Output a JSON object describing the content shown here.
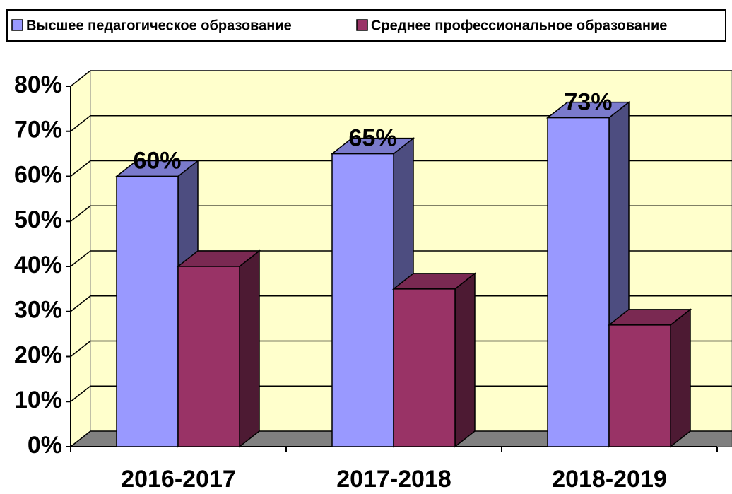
{
  "chart_data": {
    "type": "bar3d",
    "categories": [
      "2016-2017",
      "2017-2018",
      "2018-2019"
    ],
    "series": [
      {
        "name": "Высшее педагогическое образование",
        "color": "#9999ff",
        "values": [
          60,
          65,
          73
        ],
        "value_labels": [
          "60%",
          "65%",
          "73%"
        ]
      },
      {
        "name": "Среднее профессиональное образование",
        "color": "#993366",
        "values": [
          40,
          35,
          27
        ]
      }
    ],
    "ylim": [
      0,
      80
    ],
    "yticks": [
      {
        "value": 0,
        "label": "0%"
      },
      {
        "value": 10,
        "label": "10%"
      },
      {
        "value": 20,
        "label": "20%"
      },
      {
        "value": 30,
        "label": "30%"
      },
      {
        "value": 40,
        "label": "40%"
      },
      {
        "value": 50,
        "label": "50%"
      },
      {
        "value": 60,
        "label": "60%"
      },
      {
        "value": 70,
        "label": "70%"
      },
      {
        "value": 80,
        "label": "80%"
      }
    ],
    "grid": true
  }
}
